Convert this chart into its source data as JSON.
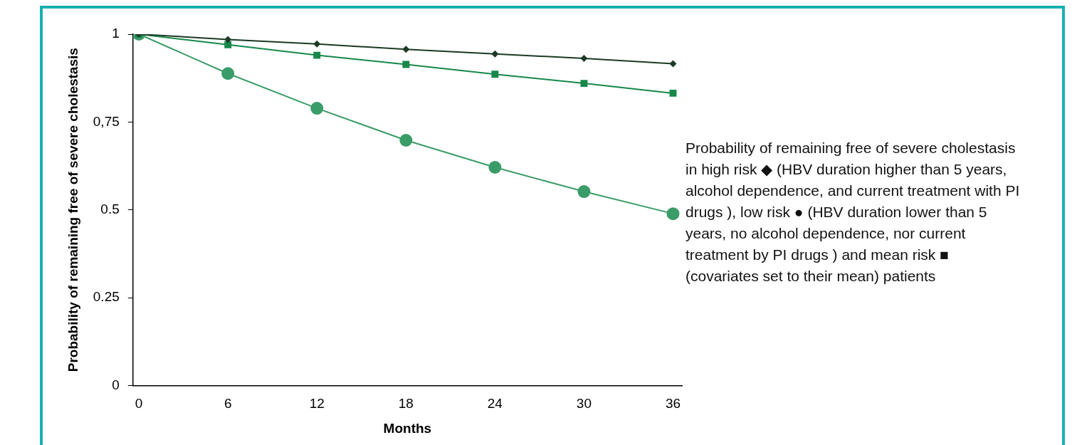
{
  "chart_data": {
    "type": "line",
    "xlabel": "Months",
    "ylabel": "Probability of remaining free of severe cholestasis",
    "x": [
      0,
      6,
      12,
      18,
      24,
      30,
      36
    ],
    "series": [
      {
        "color": "#1c3a26",
        "marker": "diamond",
        "values": [
          1,
          0.985,
          0.972,
          0.957,
          0.944,
          0.931,
          0.916
        ]
      },
      {
        "color": "#16884a",
        "marker": "square",
        "values": [
          1,
          0.97,
          0.94,
          0.914,
          0.886,
          0.86,
          0.832
        ]
      },
      {
        "color": "#3a9c68",
        "marker": "circle",
        "values": [
          1,
          0.888,
          0.789,
          0.698,
          0.621,
          0.552,
          0.489
        ]
      }
    ],
    "xlim": [
      -0.4,
      36.6
    ],
    "xticks": [
      0,
      6,
      12,
      18,
      24,
      30,
      36
    ],
    "ylim": [
      0,
      1
    ],
    "yticks": [
      0,
      0.25,
      0.5,
      {
        "value": 0.75,
        "label": "0,75"
      },
      1
    ],
    "grid": false,
    "legend": false,
    "annotations": [
      "Probability of remaining free of severe cholestasis in high risk ◆ (HBV duration higher than 5 years, alcohol dependence, and current treatment with PI drugs ), low risk ● (HBV duration lower than 5 years, no alcohol dependence, nor current treatment by PI drugs ) and mean risk ■ (covariates set to their mean) patients"
    ]
  }
}
